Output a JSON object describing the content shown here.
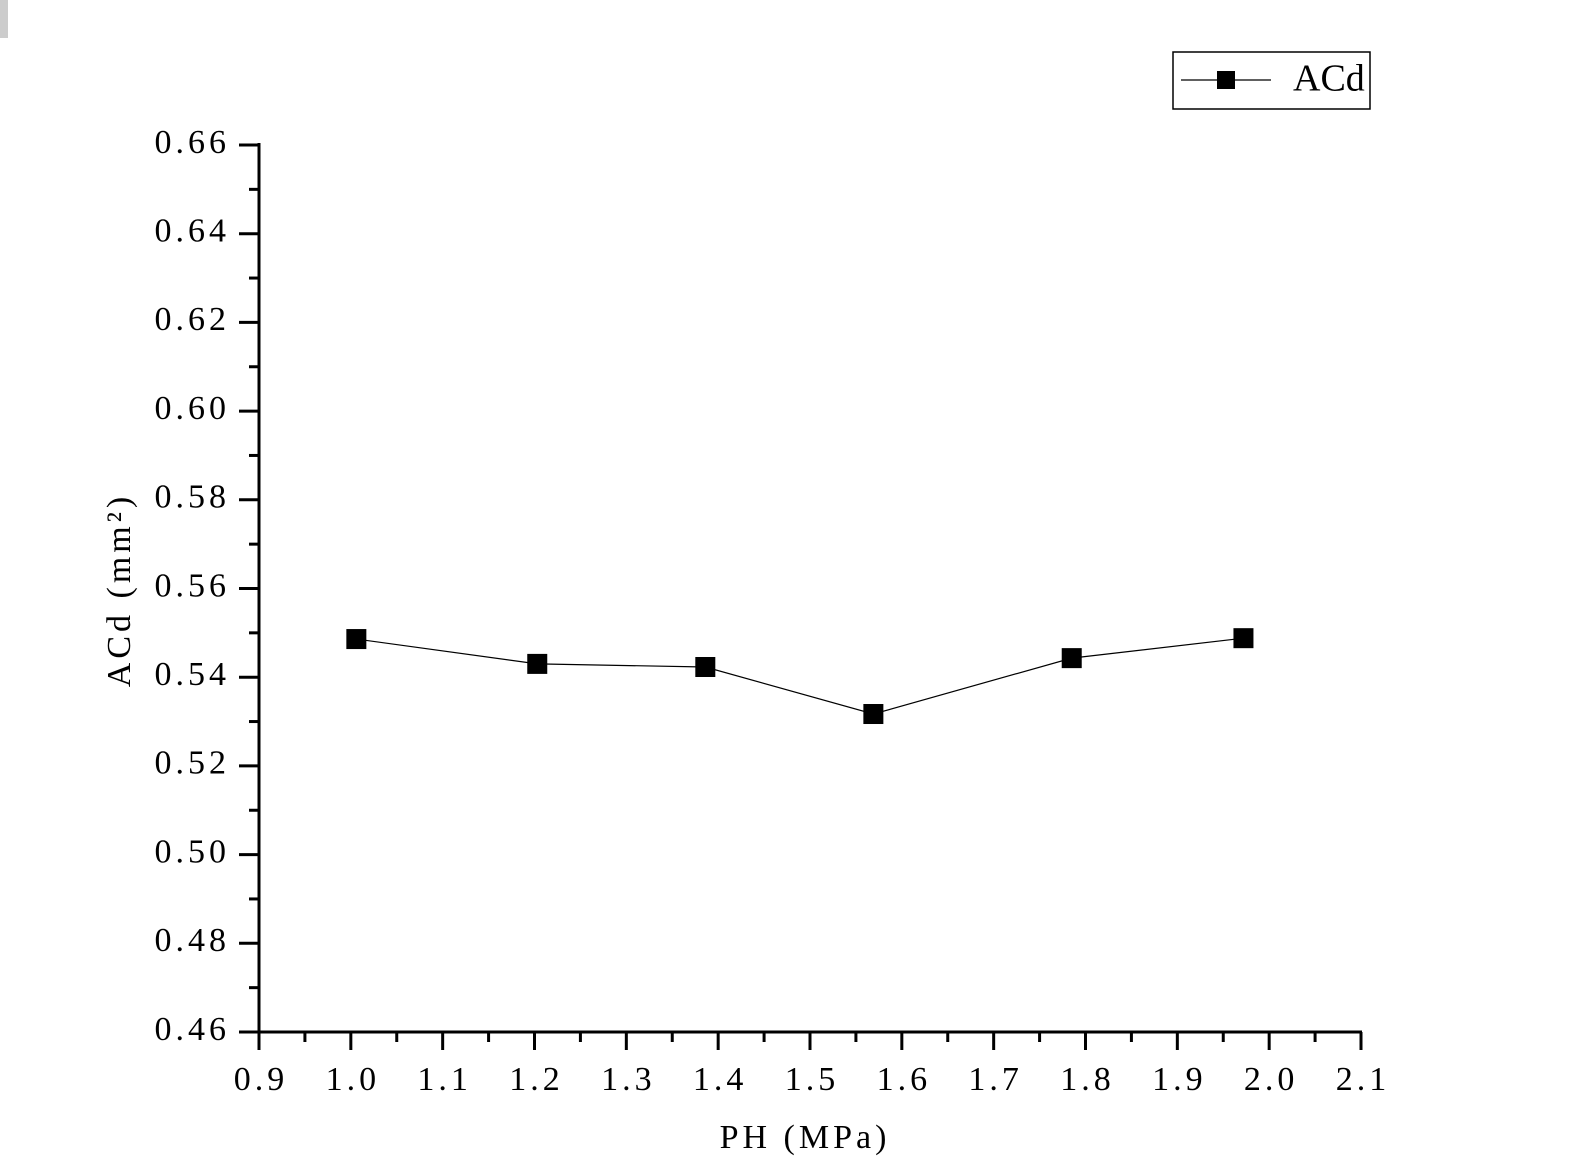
{
  "chart_data": {
    "type": "line",
    "x_label": "PH (MPa)",
    "y_label": "ACd (mm²)",
    "series": [
      {
        "name": "ACd",
        "color": "#000000",
        "x": [
          1.006,
          1.203,
          1.386,
          1.569,
          1.785,
          1.972
        ],
        "values": [
          0.5486,
          0.543,
          0.5423,
          0.5317,
          0.5443,
          0.5488
        ]
      }
    ],
    "xlim": [
      0.9,
      2.1
    ],
    "xticks": [
      0.9,
      {
        "value": 1.0,
        "label": "1.0"
      },
      1.1,
      1.2,
      1.3,
      1.4,
      1.5,
      1.6,
      1.7,
      1.8,
      1.9,
      {
        "value": 2.0,
        "label": "2.0"
      },
      2.1
    ],
    "ylim": [
      0.46,
      0.66
    ],
    "yticks": [
      0.46,
      0.48,
      {
        "value": 0.5,
        "label": "0.50"
      },
      0.52,
      0.54,
      0.56,
      0.58,
      {
        "value": 0.6,
        "label": "0.60"
      },
      0.62,
      0.64,
      0.66
    ],
    "legend_position": "top-right"
  }
}
